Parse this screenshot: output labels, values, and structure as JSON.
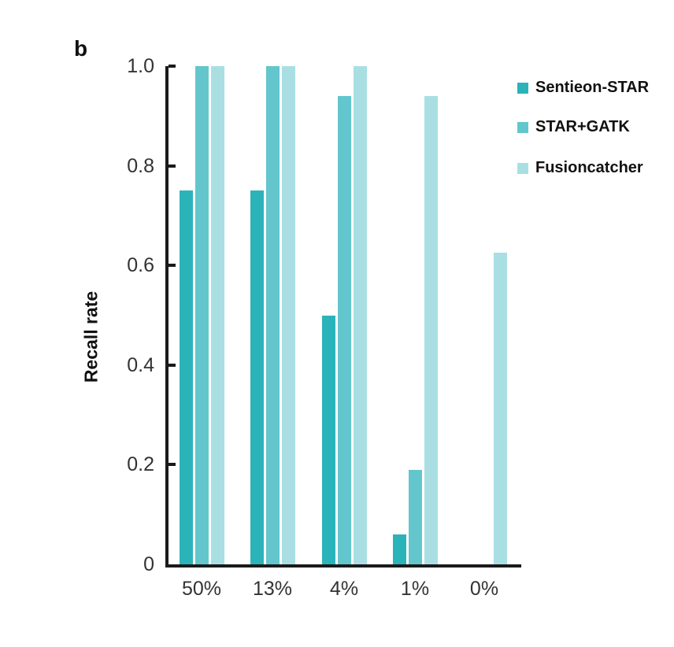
{
  "panel_label": "b",
  "chart_data": {
    "type": "bar",
    "title": "",
    "xlabel": "",
    "ylabel": "Recall rate",
    "categories": [
      "50%",
      "13%",
      "4%",
      "1%",
      "0%"
    ],
    "series": [
      {
        "name": "Sentieon-STAR",
        "color": "#2bb3ba",
        "values": [
          0.75,
          0.75,
          0.5,
          0.06,
          0
        ]
      },
      {
        "name": "STAR+GATK",
        "color": "#63c6cd",
        "values": [
          1.0,
          1.0,
          0.94,
          0.19,
          0
        ]
      },
      {
        "name": "Fusioncatcher",
        "color": "#a9dfe3",
        "values": [
          1.0,
          1.0,
          1.0,
          0.94,
          0.625
        ]
      }
    ],
    "ylim": [
      0,
      1.0
    ],
    "yticks": [
      0,
      0.2,
      0.4,
      0.6,
      0.8,
      1.0
    ],
    "ytick_labels": [
      "0",
      "0.2",
      "0.4",
      "0.6",
      "0.8",
      "1.0"
    ],
    "grid": false,
    "legend_position": "right-top",
    "axis_color": "#1a1a1a"
  }
}
